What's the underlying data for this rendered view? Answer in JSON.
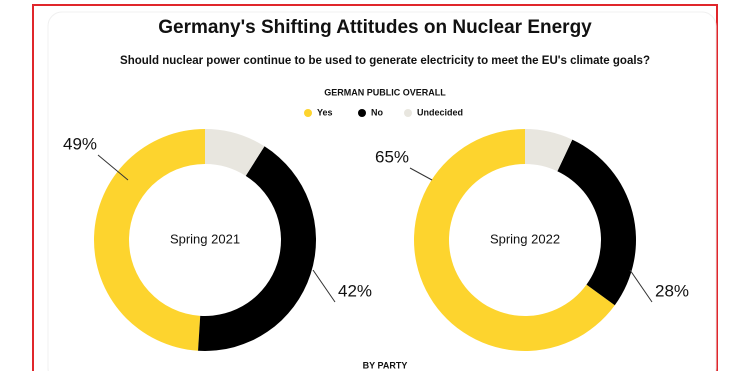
{
  "title": "Germany's Shifting Attitudes on Nuclear Energy",
  "subtitle": "Should nuclear power continue to be used to generate electricity to meet the EU's climate goals?",
  "legend_title": "GERMAN PUBLIC OVERALL",
  "footer": "BY PARTY",
  "chart_data": [
    {
      "type": "donut",
      "center_label": "Spring 2021",
      "categories": [
        "Yes",
        "No",
        "Undecided"
      ],
      "colors": [
        "#fdd42e",
        "#000000",
        "#e8e6df"
      ],
      "values": [
        49,
        42,
        9
      ],
      "value_labels": [
        "49%",
        "42%",
        null
      ]
    },
    {
      "type": "donut",
      "center_label": "Spring 2022",
      "categories": [
        "Yes",
        "No",
        "Undecided"
      ],
      "colors": [
        "#fdd42e",
        "#000000",
        "#e8e6df"
      ],
      "values": [
        65,
        28,
        7
      ],
      "value_labels": [
        "65%",
        "28%",
        null
      ]
    }
  ]
}
